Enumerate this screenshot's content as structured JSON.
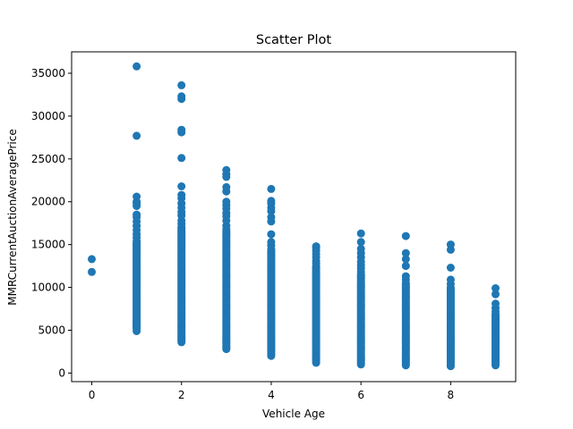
{
  "chart_data": {
    "type": "scatter",
    "title": "Scatter Plot",
    "xlabel": "Vehicle Age",
    "ylabel": "MMRCurrentAuctionAveragePrice",
    "xlim": [
      -0.45,
      9.45
    ],
    "ylim": [
      -1000,
      37500
    ],
    "xticks": [
      0,
      2,
      4,
      6,
      8
    ],
    "yticks": [
      0,
      5000,
      10000,
      15000,
      20000,
      25000,
      30000,
      35000
    ],
    "grid": false,
    "legend": "none",
    "marker_color": "#1f77b4",
    "columns": [
      {
        "x": 0,
        "dense_range": null,
        "points": [
          13300,
          11800
        ]
      },
      {
        "x": 1,
        "dense_range": [
          5200,
          15500
        ],
        "points": [
          4900,
          5300,
          5700,
          6000,
          15800,
          16200,
          16700,
          17200,
          17700,
          18200,
          18500,
          19500,
          19800,
          20000,
          20600,
          27700,
          35800
        ]
      },
      {
        "x": 2,
        "dense_range": [
          3800,
          17000
        ],
        "points": [
          3600,
          17400,
          17800,
          18400,
          18800,
          19300,
          19800,
          20400,
          20800,
          21800,
          25100,
          28100,
          28400,
          32000,
          32300,
          33600
        ]
      },
      {
        "x": 3,
        "dense_range": [
          2800,
          16800
        ],
        "points": [
          17200,
          17800,
          18300,
          18700,
          19200,
          19600,
          20000,
          21200,
          21700,
          22900,
          23200,
          23700
        ]
      },
      {
        "x": 4,
        "dense_range": [
          2000,
          14500
        ],
        "points": [
          14900,
          15300,
          16200,
          17700,
          18200,
          18900,
          19300,
          19800,
          20100,
          21500
        ]
      },
      {
        "x": 5,
        "dense_range": [
          1200,
          12500
        ],
        "points": [
          12800,
          13100,
          13500,
          13900,
          14300,
          14600,
          14800
        ]
      },
      {
        "x": 6,
        "dense_range": [
          1000,
          11500
        ],
        "points": [
          11800,
          12200,
          12600,
          13000,
          13500,
          14000,
          14500,
          15300,
          16300
        ]
      },
      {
        "x": 7,
        "dense_range": [
          900,
          10500
        ],
        "points": [
          10900,
          11300,
          12500,
          13300,
          14000,
          16000
        ]
      },
      {
        "x": 8,
        "dense_range": [
          800,
          10000
        ],
        "points": [
          10400,
          10900,
          12300,
          14400,
          15000
        ]
      },
      {
        "x": 9,
        "dense_range": [
          900,
          7000
        ],
        "points": [
          7200,
          7600,
          8100,
          9200,
          9900
        ]
      }
    ]
  }
}
